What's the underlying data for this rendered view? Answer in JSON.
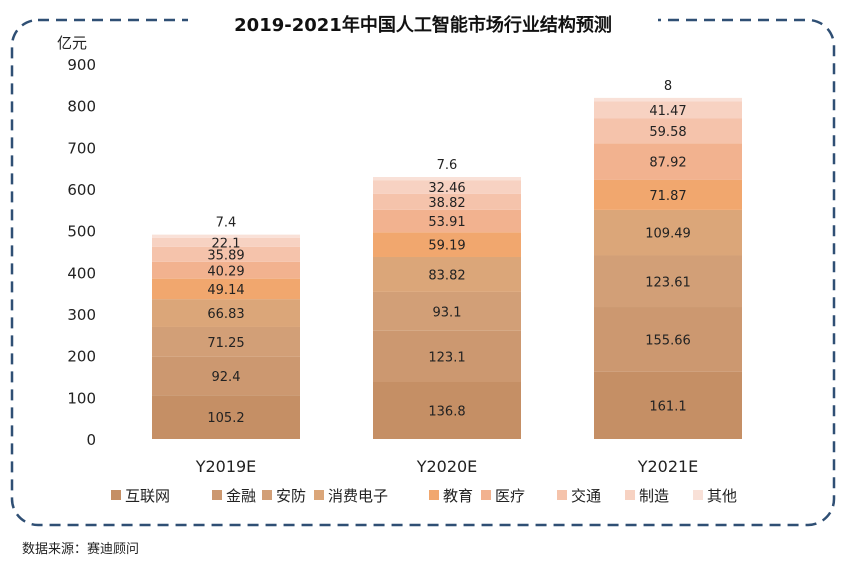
{
  "source_label": "数据来源：赛迪顾问",
  "chart_data": {
    "type": "bar",
    "stacked": true,
    "title": "2019-2021年中国人工智能市场行业结构预测",
    "ylabel": "亿元",
    "ylim": [
      0,
      900
    ],
    "yticks": [
      0,
      100,
      200,
      300,
      400,
      500,
      600,
      700,
      800,
      900
    ],
    "categories": [
      "Y2019E",
      "Y2020E",
      "Y2021E"
    ],
    "legend_position": "bottom",
    "grid": false,
    "series": [
      {
        "name": "互联网",
        "color": "#c58f65",
        "values": [
          105.2,
          136.8,
          161.1
        ]
      },
      {
        "name": "金融",
        "color": "#cc9870",
        "values": [
          92.4,
          123.1,
          155.66
        ]
      },
      {
        "name": "安防",
        "color": "#d29f77",
        "values": [
          71.25,
          93.1,
          123.61
        ]
      },
      {
        "name": "消费电子",
        "color": "#dba679",
        "values": [
          66.83,
          83.82,
          109.49
        ]
      },
      {
        "name": "教育",
        "color": "#f1a76e",
        "values": [
          49.14,
          59.19,
          71.87
        ]
      },
      {
        "name": "医疗",
        "color": "#f2b28f",
        "values": [
          40.29,
          53.91,
          87.92
        ]
      },
      {
        "name": "交通",
        "color": "#f5c3ab",
        "values": [
          35.89,
          38.82,
          59.58
        ]
      },
      {
        "name": "制造",
        "color": "#f7d2c2",
        "values": [
          22.1,
          32.46,
          41.47
        ]
      },
      {
        "name": "其他",
        "color": "#f9e1d8",
        "values": [
          7.4,
          7.6,
          8
        ]
      }
    ]
  }
}
